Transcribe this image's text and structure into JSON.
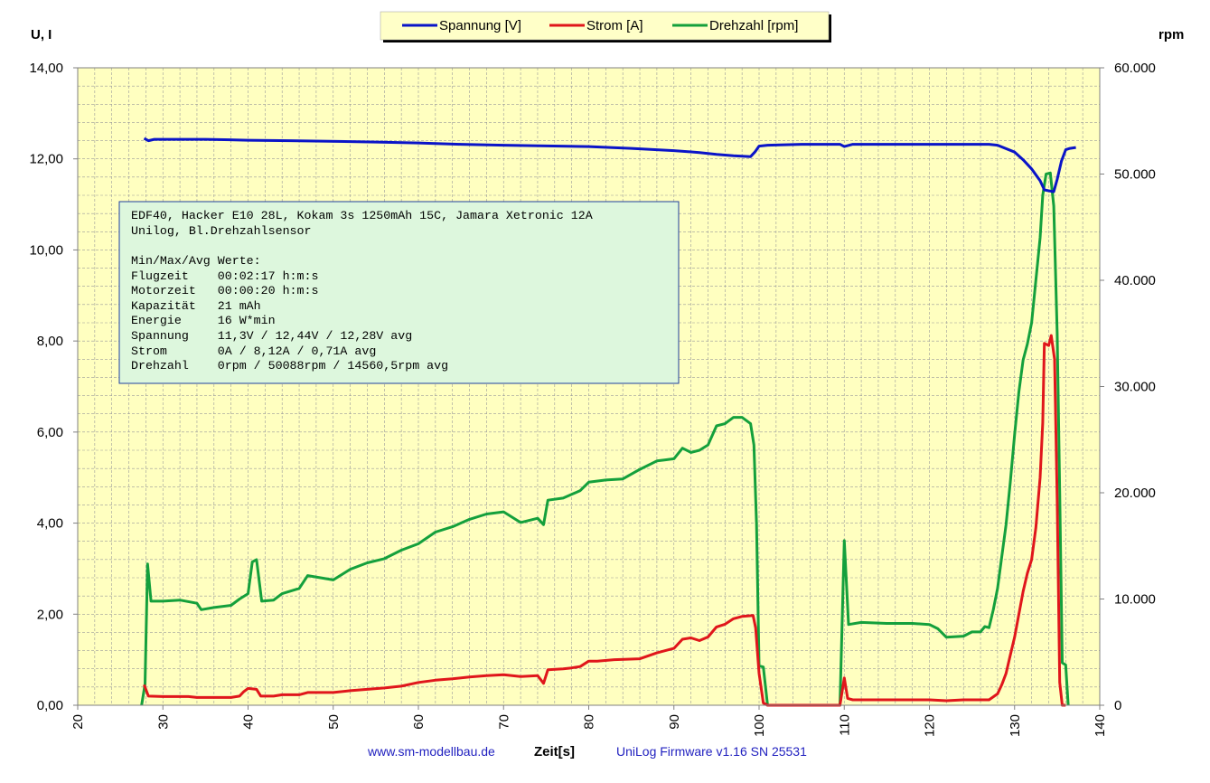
{
  "chart_data": {
    "type": "line",
    "left_axis_title": "U, I",
    "right_axis_title": "rpm",
    "xlabel": "Zeit[s]",
    "xlim": [
      20,
      140
    ],
    "x_ticks": [
      "20",
      "30",
      "40",
      "50",
      "60",
      "70",
      "80",
      "90",
      "100",
      "110",
      "120",
      "130",
      "140"
    ],
    "ylim_left": [
      0,
      14
    ],
    "y_ticks_left": [
      "0,00",
      "2,00",
      "4,00",
      "6,00",
      "8,00",
      "10,00",
      "12,00",
      "14,00"
    ],
    "ylim_right": [
      0,
      60000
    ],
    "y_ticks_right": [
      "0",
      "10.000",
      "20.000",
      "30.000",
      "40.000",
      "50.000",
      "60.000"
    ],
    "grid": true,
    "legend_position": "top",
    "legend": [
      "Spannung [V]",
      "Strom [A]",
      "Drehzahl [rpm]"
    ],
    "series": [
      {
        "name": "Spannung [V]",
        "axis": "left",
        "color": "#0a14c8",
        "points": [
          [
            27.8,
            12.45
          ],
          [
            28.3,
            12.4
          ],
          [
            29,
            12.43
          ],
          [
            35,
            12.43
          ],
          [
            40,
            12.41
          ],
          [
            45,
            12.4
          ],
          [
            55,
            12.37
          ],
          [
            60,
            12.35
          ],
          [
            65,
            12.32
          ],
          [
            70,
            12.3
          ],
          [
            80,
            12.27
          ],
          [
            85,
            12.23
          ],
          [
            90,
            12.18
          ],
          [
            93,
            12.14
          ],
          [
            95,
            12.1
          ],
          [
            97,
            12.07
          ],
          [
            99,
            12.05
          ],
          [
            99.5,
            12.15
          ],
          [
            100,
            12.28
          ],
          [
            101,
            12.3
          ],
          [
            105,
            12.32
          ],
          [
            109.5,
            12.32
          ],
          [
            110,
            12.27
          ],
          [
            111,
            12.32
          ],
          [
            120,
            12.32
          ],
          [
            127,
            12.32
          ],
          [
            128,
            12.3
          ],
          [
            130,
            12.15
          ],
          [
            131,
            11.98
          ],
          [
            132,
            11.78
          ],
          [
            133,
            11.52
          ],
          [
            133.5,
            11.32
          ],
          [
            134,
            11.3
          ],
          [
            134.6,
            11.28
          ],
          [
            135,
            11.55
          ],
          [
            135.5,
            11.95
          ],
          [
            136,
            12.2
          ],
          [
            136.5,
            12.23
          ],
          [
            137.2,
            12.25
          ]
        ]
      },
      {
        "name": "Strom [A]",
        "axis": "left",
        "color": "#e0161b",
        "points": [
          [
            27.8,
            0.45
          ],
          [
            28.3,
            0.2
          ],
          [
            30,
            0.19
          ],
          [
            33,
            0.19
          ],
          [
            34,
            0.17
          ],
          [
            38,
            0.17
          ],
          [
            39,
            0.2
          ],
          [
            39.5,
            0.3
          ],
          [
            40,
            0.37
          ],
          [
            41,
            0.35
          ],
          [
            41.5,
            0.2
          ],
          [
            43,
            0.2
          ],
          [
            44,
            0.23
          ],
          [
            46,
            0.23
          ],
          [
            47,
            0.28
          ],
          [
            50,
            0.28
          ],
          [
            52,
            0.32
          ],
          [
            54,
            0.35
          ],
          [
            56,
            0.38
          ],
          [
            58,
            0.42
          ],
          [
            60,
            0.5
          ],
          [
            62,
            0.55
          ],
          [
            64,
            0.58
          ],
          [
            66,
            0.62
          ],
          [
            68,
            0.65
          ],
          [
            70,
            0.67
          ],
          [
            72,
            0.63
          ],
          [
            74,
            0.65
          ],
          [
            74.7,
            0.48
          ],
          [
            75.2,
            0.78
          ],
          [
            77,
            0.8
          ],
          [
            78,
            0.82
          ],
          [
            79,
            0.85
          ],
          [
            80,
            0.97
          ],
          [
            81,
            0.97
          ],
          [
            83,
            1.0
          ],
          [
            86,
            1.02
          ],
          [
            88,
            1.15
          ],
          [
            89,
            1.2
          ],
          [
            90,
            1.25
          ],
          [
            91,
            1.45
          ],
          [
            92,
            1.48
          ],
          [
            93,
            1.42
          ],
          [
            94,
            1.5
          ],
          [
            95,
            1.72
          ],
          [
            96,
            1.78
          ],
          [
            97,
            1.9
          ],
          [
            98,
            1.95
          ],
          [
            99.3,
            1.97
          ],
          [
            99.6,
            1.7
          ],
          [
            100,
            0.7
          ],
          [
            100.5,
            0.05
          ],
          [
            101,
            0
          ],
          [
            109.5,
            0
          ],
          [
            110,
            0.6
          ],
          [
            110.4,
            0.15
          ],
          [
            111,
            0.12
          ],
          [
            115,
            0.12
          ],
          [
            120,
            0.12
          ],
          [
            122,
            0.1
          ],
          [
            124,
            0.12
          ],
          [
            127,
            0.12
          ],
          [
            128,
            0.25
          ],
          [
            128.5,
            0.45
          ],
          [
            129,
            0.7
          ],
          [
            129.5,
            1.1
          ],
          [
            130,
            1.5
          ],
          [
            130.5,
            2.0
          ],
          [
            131,
            2.5
          ],
          [
            131.5,
            2.9
          ],
          [
            132,
            3.2
          ],
          [
            132.5,
            3.9
          ],
          [
            133,
            5.0
          ],
          [
            133.3,
            6.2
          ],
          [
            133.5,
            7.95
          ],
          [
            134,
            7.9
          ],
          [
            134.3,
            8.12
          ],
          [
            134.7,
            7.6
          ],
          [
            135,
            4.5
          ],
          [
            135.3,
            0.5
          ],
          [
            135.6,
            0
          ],
          [
            136,
            0
          ]
        ]
      },
      {
        "name": "Drehzahl [rpm]",
        "axis": "right",
        "color": "#14a03c",
        "points": [
          [
            27.5,
            0
          ],
          [
            27.9,
            2000
          ],
          [
            28.2,
            13300
          ],
          [
            28.6,
            9800
          ],
          [
            30,
            9800
          ],
          [
            32,
            9900
          ],
          [
            34,
            9600
          ],
          [
            34.5,
            9000
          ],
          [
            36,
            9200
          ],
          [
            38,
            9400
          ],
          [
            39,
            10000
          ],
          [
            40,
            10500
          ],
          [
            40.5,
            13500
          ],
          [
            41,
            13700
          ],
          [
            41.6,
            9800
          ],
          [
            43,
            9900
          ],
          [
            44,
            10500
          ],
          [
            46,
            11000
          ],
          [
            47,
            12200
          ],
          [
            50,
            11800
          ],
          [
            52,
            12800
          ],
          [
            54,
            13400
          ],
          [
            56,
            13800
          ],
          [
            58,
            14600
          ],
          [
            60,
            15200
          ],
          [
            62,
            16300
          ],
          [
            64,
            16800
          ],
          [
            66,
            17500
          ],
          [
            68,
            18000
          ],
          [
            70,
            18200
          ],
          [
            72,
            17200
          ],
          [
            74,
            17600
          ],
          [
            74.7,
            17000
          ],
          [
            75.2,
            19300
          ],
          [
            77,
            19500
          ],
          [
            79,
            20200
          ],
          [
            80,
            21000
          ],
          [
            82,
            21200
          ],
          [
            84,
            21300
          ],
          [
            86,
            22200
          ],
          [
            88,
            23000
          ],
          [
            89,
            23100
          ],
          [
            90,
            23200
          ],
          [
            91,
            24200
          ],
          [
            92,
            23800
          ],
          [
            93,
            24000
          ],
          [
            94,
            24500
          ],
          [
            95,
            26300
          ],
          [
            96,
            26500
          ],
          [
            97,
            27100
          ],
          [
            98,
            27100
          ],
          [
            99,
            26500
          ],
          [
            99.4,
            24500
          ],
          [
            99.7,
            17000
          ],
          [
            100,
            3700
          ],
          [
            100.5,
            3600
          ],
          [
            101,
            0
          ],
          [
            109.5,
            0
          ],
          [
            110,
            15500
          ],
          [
            110.5,
            7600
          ],
          [
            112,
            7800
          ],
          [
            115,
            7700
          ],
          [
            118,
            7700
          ],
          [
            120,
            7600
          ],
          [
            121,
            7200
          ],
          [
            122,
            6400
          ],
          [
            124,
            6500
          ],
          [
            125,
            6900
          ],
          [
            126,
            6900
          ],
          [
            126.5,
            7400
          ],
          [
            127,
            7300
          ],
          [
            127.5,
            9000
          ],
          [
            128,
            11000
          ],
          [
            128.5,
            14000
          ],
          [
            129,
            17000
          ],
          [
            129.5,
            21000
          ],
          [
            130,
            25500
          ],
          [
            130.5,
            29500
          ],
          [
            131,
            32500
          ],
          [
            131.5,
            34000
          ],
          [
            132,
            36000
          ],
          [
            132.5,
            40000
          ],
          [
            133,
            44000
          ],
          [
            133.3,
            48000
          ],
          [
            133.7,
            50000
          ],
          [
            134.2,
            50100
          ],
          [
            134.6,
            47000
          ],
          [
            135,
            35000
          ],
          [
            135.3,
            20000
          ],
          [
            135.6,
            4000
          ],
          [
            136,
            3800
          ],
          [
            136.3,
            0
          ]
        ]
      }
    ],
    "info_box": [
      "EDF40, Hacker E10 28L, Kokam 3s 1250mAh 15C, Jamara Xetronic 12A",
      "Unilog, Bl.Drehzahlsensor",
      "",
      "Min/Max/Avg Werte:",
      "Flugzeit    00:02:17 h:m:s",
      "Motorzeit   00:00:20 h:m:s",
      "Kapazität   21 mAh",
      "Energie     16 W*min",
      "Spannung    11,3V / 12,44V / 12,28V avg",
      "Strom       0A / 8,12A / 0,71A avg",
      "Drehzahl    0rpm / 50088rpm / 14560,5rpm avg"
    ],
    "footer_left": "www.sm-modellbau.de",
    "footer_right": "UniLog  Firmware v1.16  SN 25531",
    "colors": {
      "plot_background": "#ffffc0",
      "info_box_fill": "#ddf7dd",
      "info_box_border": "#1f3f9f",
      "legend_fill": "#ffffc8"
    }
  }
}
